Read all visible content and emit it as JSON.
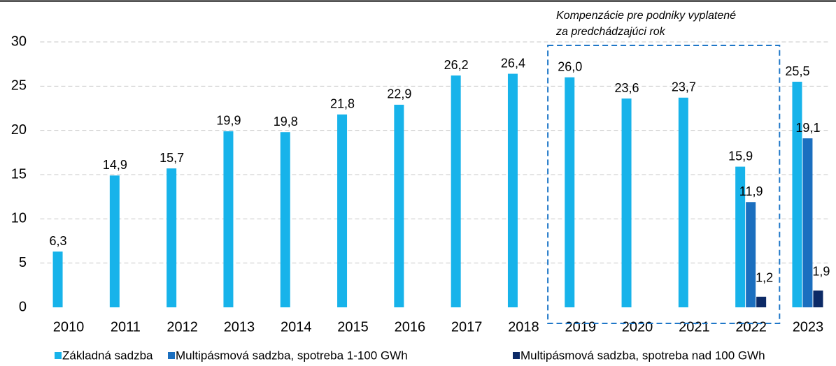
{
  "chart_data": {
    "type": "bar",
    "annotation": [
      "Kompenzácie pre podniky vyplatené",
      "za predchádzajúci rok"
    ],
    "categories": [
      "2010",
      "2011",
      "2012",
      "2013",
      "2014",
      "2015",
      "2016",
      "2017",
      "2018",
      "2019",
      "2020",
      "2021",
      "2022",
      "2023"
    ],
    "series": [
      {
        "name": "Základná sadzba",
        "color": "#17b3ea",
        "values": [
          6.3,
          14.9,
          15.7,
          19.9,
          19.8,
          21.8,
          22.9,
          26.2,
          26.4,
          26.0,
          23.6,
          23.7,
          15.9,
          25.5
        ],
        "value_labels": [
          "6,3",
          "14,9",
          "15,7",
          "19,9",
          "19,8",
          "21,8",
          "22,9",
          "26,2",
          "26,4",
          "26,0",
          "23,6",
          "23,7",
          "15,9",
          "25,5"
        ]
      },
      {
        "name": "Multipásmová sadzba, spotreba 1-100 GWh",
        "color": "#1b6fbf",
        "values": [
          null,
          null,
          null,
          null,
          null,
          null,
          null,
          null,
          null,
          null,
          null,
          null,
          11.9,
          19.1
        ],
        "value_labels": [
          null,
          null,
          null,
          null,
          null,
          null,
          null,
          null,
          null,
          null,
          null,
          null,
          "11,9",
          "19,1"
        ]
      },
      {
        "name": "Multipásmová sadzba, spotreba nad 100 GWh",
        "color": "#0c2a66",
        "values": [
          null,
          null,
          null,
          null,
          null,
          null,
          null,
          null,
          null,
          null,
          null,
          null,
          1.2,
          1.9
        ],
        "value_labels": [
          null,
          null,
          null,
          null,
          null,
          null,
          null,
          null,
          null,
          null,
          null,
          null,
          "1,2",
          "1,9"
        ]
      }
    ],
    "ylim": [
      0,
      30
    ],
    "yticks": [
      0,
      5,
      10,
      15,
      20,
      25,
      30
    ],
    "grid": true,
    "legend": "bottom"
  }
}
